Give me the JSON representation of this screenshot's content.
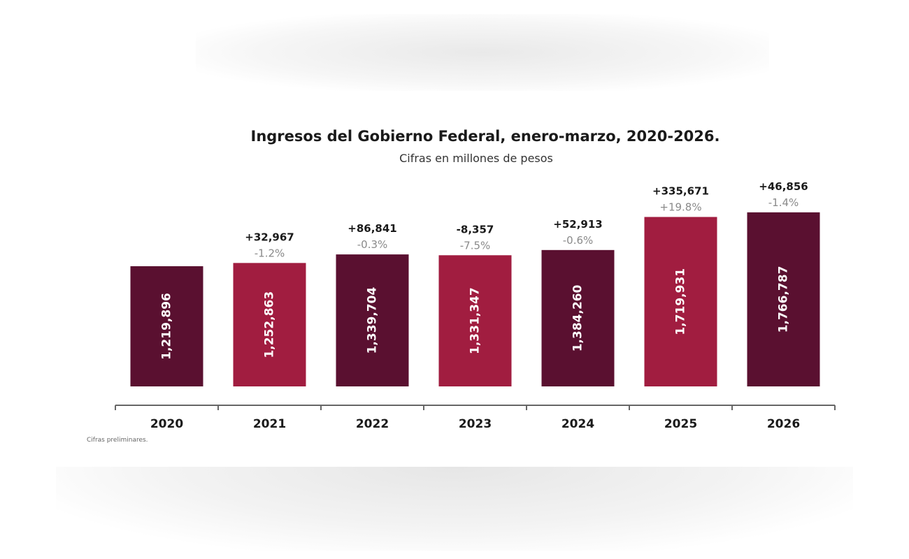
{
  "chart_data": {
    "type": "bar",
    "title": "Ingresos del Gobierno Federal, enero-marzo, 2020-2026.",
    "subtitle": "Cifras en millones de pesos",
    "categories": [
      "2020",
      "2021",
      "2022",
      "2023",
      "2024",
      "2025",
      "2026"
    ],
    "values": [
      1219896,
      1252863,
      1339704,
      1331347,
      1384260,
      1719931,
      1766787
    ],
    "value_labels": [
      "1,219,896",
      "1,252,863",
      "1,339,704",
      "1,331,347",
      "1,384,260",
      "1,719,931",
      "1,766,787"
    ],
    "change_abs": [
      "",
      "+32,967",
      "+86,841",
      "-8,357",
      "+52,913",
      "+335,671",
      "+46,856"
    ],
    "change_pct": [
      "",
      "-1.2%",
      "-0.3%",
      "-7.5%",
      "-0.6%",
      "+19.8%",
      "-1.4%"
    ],
    "ylim": [
      0,
      1900000
    ],
    "grid": false,
    "footnote": "Cifras preliminares.",
    "colors": {
      "dark": "#5a1030",
      "light": "#a11d40",
      "abs": "#1a1a1a",
      "pct": "#8a8a8a"
    },
    "bar_color_pattern": [
      "dark",
      "light",
      "dark",
      "light",
      "dark",
      "light",
      "dark"
    ]
  }
}
